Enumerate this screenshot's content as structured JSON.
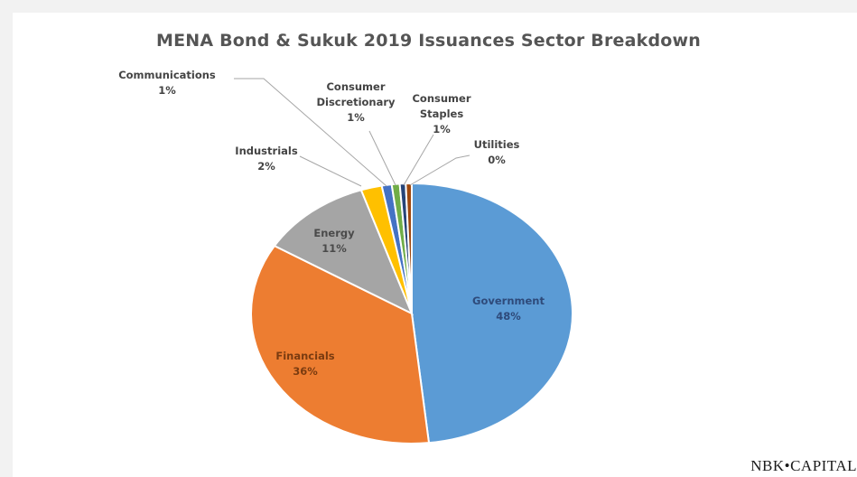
{
  "chart_data": {
    "type": "pie",
    "title": "MENA Bond & Sukuk 2019 Issuances Sector Breakdown",
    "slices": [
      {
        "name": "Government",
        "value": 48,
        "label": "48%",
        "color": "#5b9bd5"
      },
      {
        "name": "Financials",
        "value": 36,
        "label": "36%",
        "color": "#ed7d31"
      },
      {
        "name": "Energy",
        "value": 11,
        "label": "11%",
        "color": "#a5a5a5"
      },
      {
        "name": "Industrials",
        "value": 2,
        "label": "2%",
        "color": "#ffc000"
      },
      {
        "name": "Communications",
        "value": 1,
        "label": "1%",
        "color": "#4472c4"
      },
      {
        "name": "Consumer Discretionary",
        "value": 1,
        "label": "1%",
        "color": "#70ad47"
      },
      {
        "name": "Consumer Staples",
        "value": 1,
        "label": "1%",
        "color": "#264478"
      },
      {
        "name": "Utilities",
        "value": 0,
        "label": "0%",
        "color": "#9e480e"
      }
    ]
  },
  "logo_text": "NBK•CAPITAL"
}
